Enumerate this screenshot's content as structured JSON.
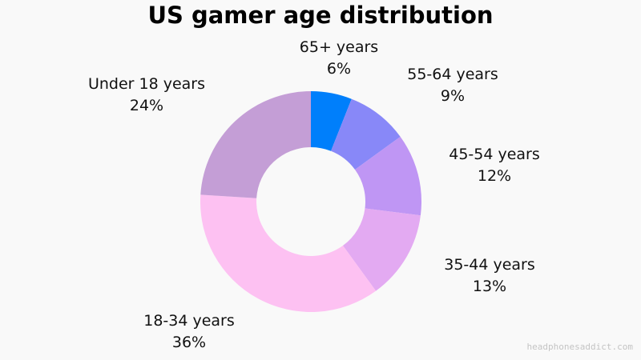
{
  "chart_data": {
    "type": "pie",
    "donut": true,
    "title": "US gamer age distribution",
    "slices": [
      {
        "label": "65+ years",
        "value": 6,
        "value_label": "6%",
        "color": "#007ffb"
      },
      {
        "label": "55-64 years",
        "value": 9,
        "value_label": "9%",
        "color": "#8888f8"
      },
      {
        "label": "45-54 years",
        "value": 12,
        "value_label": "12%",
        "color": "#bf96f4"
      },
      {
        "label": "35-44 years",
        "value": 13,
        "value_label": "13%",
        "color": "#e3aaf2"
      },
      {
        "label": "18-34 years",
        "value": 36,
        "value_label": "36%",
        "color": "#fdc1f2"
      },
      {
        "label": "Under 18 years",
        "value": 24,
        "value_label": "24%",
        "color": "#c49ed6"
      }
    ]
  },
  "watermark": "headphonesaddict.com"
}
